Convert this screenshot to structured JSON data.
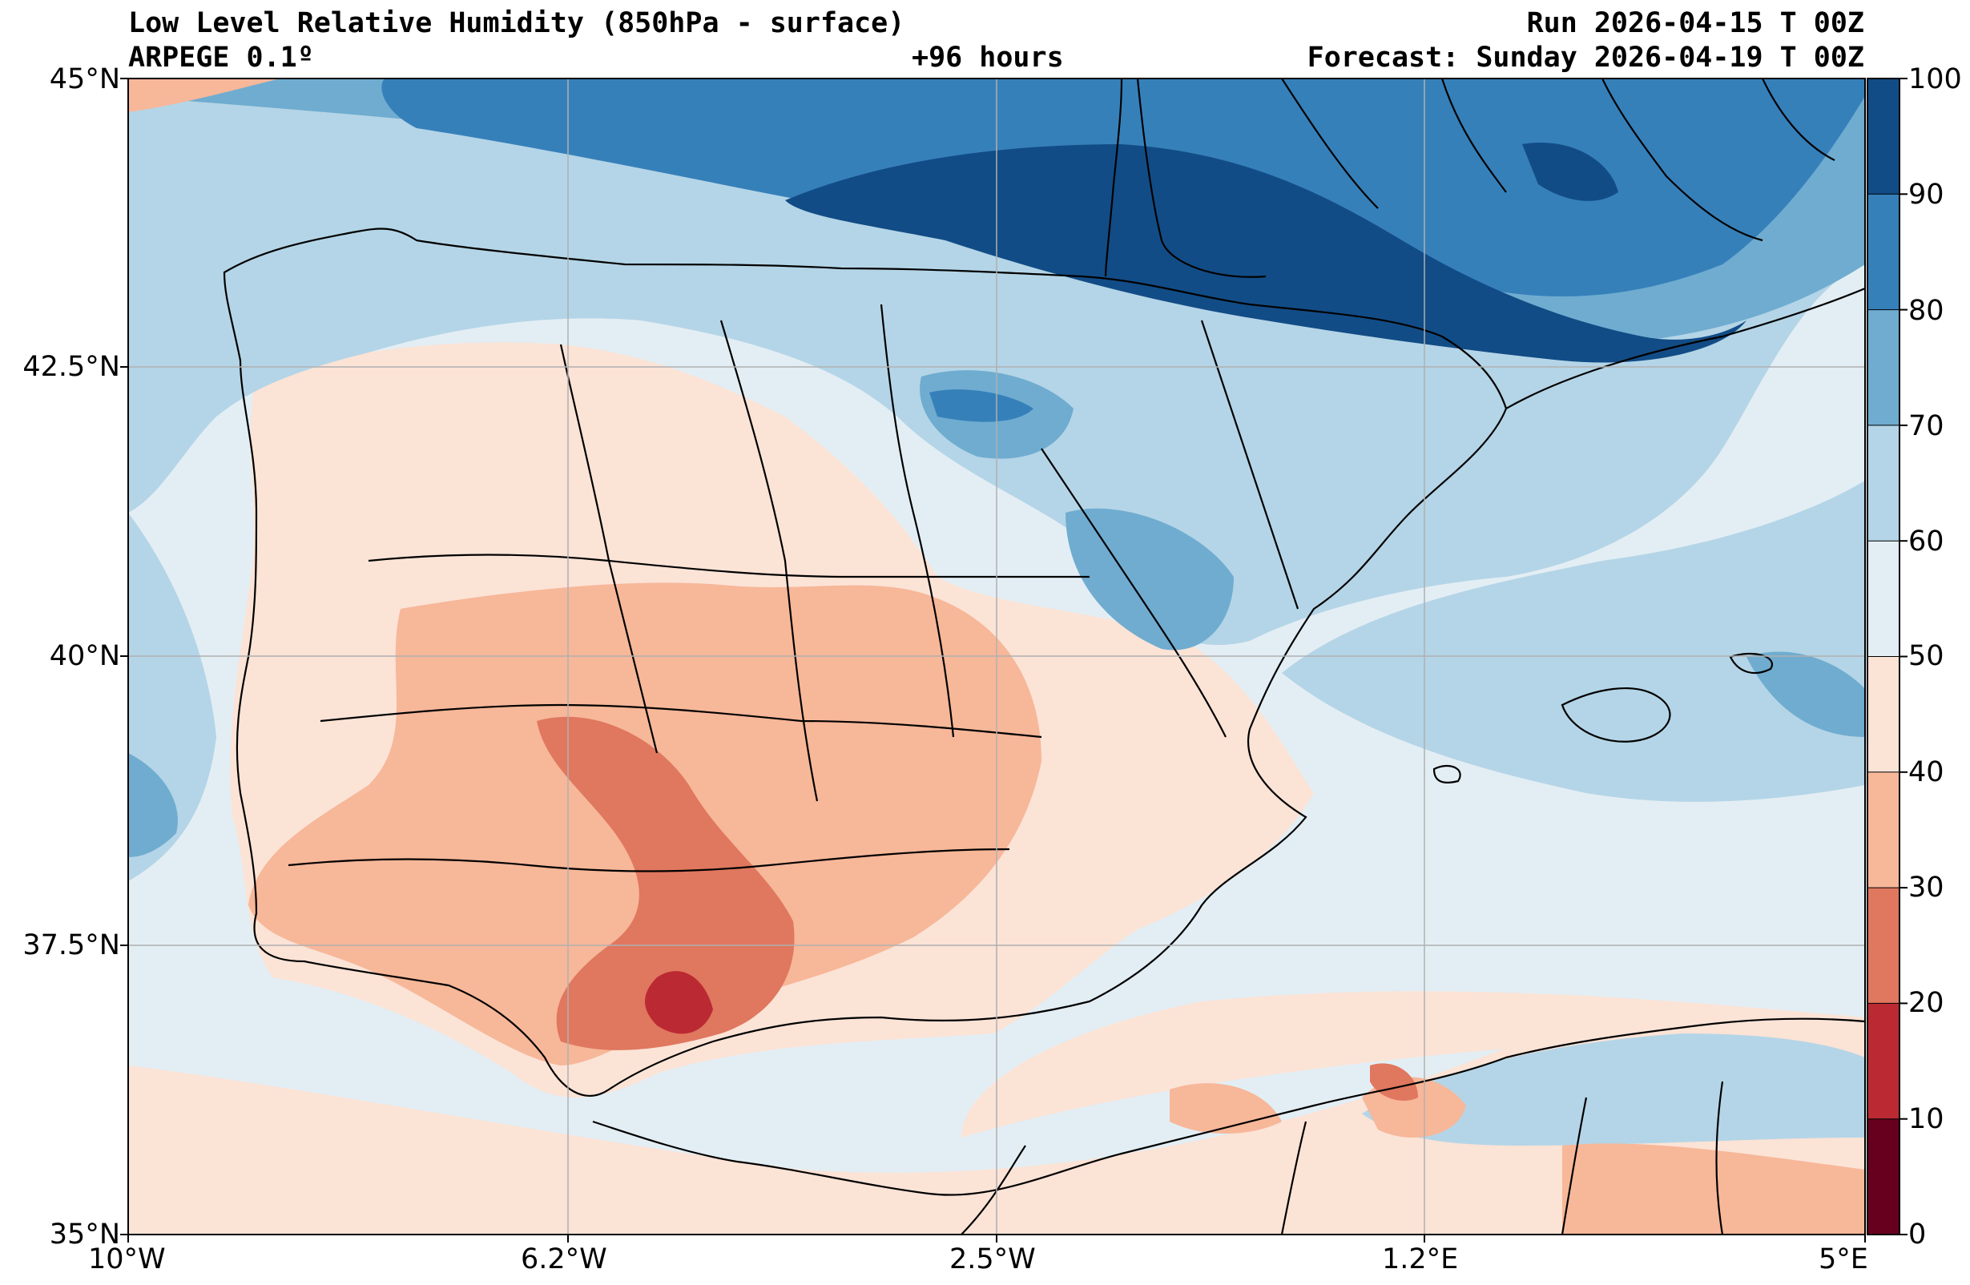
{
  "header": {
    "title_left": "Low Level Relative Humidity (850hPa - surface)",
    "model": "ARPEGE 0.1º",
    "lead_time": "+96 hours",
    "run": "Run 2026-04-15 T 00Z",
    "forecast": "Forecast: Sunday 2026-04-19 T 00Z"
  },
  "axes": {
    "lat_labels": [
      "45°N",
      "42.5°N",
      "40°N",
      "37.5°N",
      "35°N"
    ],
    "lon_labels": [
      "10°W",
      "6.2°W",
      "2.5°W",
      "1.2°E",
      "5°E"
    ],
    "lat_range": [
      35,
      45
    ],
    "lon_range": [
      -10,
      5
    ]
  },
  "colorbar": {
    "ticks": [
      "0",
      "10",
      "20",
      "30",
      "40",
      "50",
      "60",
      "70",
      "80",
      "90",
      "100"
    ],
    "bins": [
      {
        "from": 0,
        "to": 10,
        "color": "#67001f"
      },
      {
        "from": 10,
        "to": 20,
        "color": "#bb2a33"
      },
      {
        "from": 20,
        "to": 30,
        "color": "#e0775f"
      },
      {
        "from": 30,
        "to": 40,
        "color": "#f7b799"
      },
      {
        "from": 40,
        "to": 50,
        "color": "#fbe3d6"
      },
      {
        "from": 50,
        "to": 60,
        "color": "#e3eef4"
      },
      {
        "from": 60,
        "to": 70,
        "color": "#b4d5e7"
      },
      {
        "from": 70,
        "to": 80,
        "color": "#6facd0"
      },
      {
        "from": 80,
        "to": 90,
        "color": "#3680ba"
      },
      {
        "from": 90,
        "to": 100,
        "color": "#124c86"
      }
    ]
  },
  "colors": {
    "bg_light_blue": "#e3eef4",
    "land_outline": "#000000",
    "grid": "#b0b0b0"
  }
}
